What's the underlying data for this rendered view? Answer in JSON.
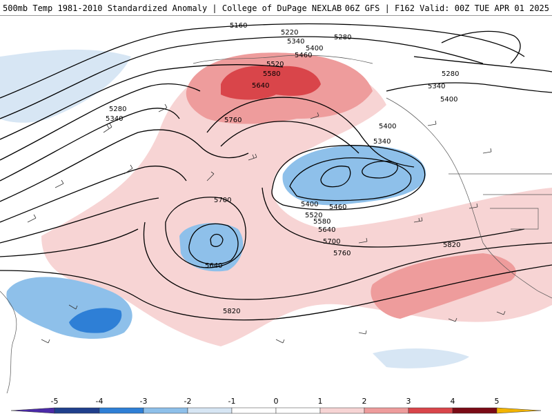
{
  "header": {
    "title_left": "500mb Temp 1981-2010 Standardized Anomaly | College of DuPage NEXLAB",
    "title_right": "06Z GFS | F162 Valid: 00Z TUE APR 01 2025"
  },
  "map": {
    "contour_labels": [
      "5160",
      "5220",
      "5280",
      "5340",
      "5400",
      "5460",
      "5520",
      "5580",
      "5640",
      "5760",
      "5280",
      "5340",
      "5400",
      "5340",
      "5400",
      "5460",
      "5520",
      "5580",
      "5640",
      "5700",
      "5760",
      "5820",
      "5700",
      "5640",
      "5820",
      "5280",
      "5340",
      "5400",
      "5280",
      "5400",
      "5340"
    ]
  },
  "legend": {
    "ticks": [
      "-5",
      "-4",
      "-3",
      "-2",
      "-1",
      "0",
      "1",
      "2",
      "3",
      "4",
      "5"
    ],
    "colors": {
      "m5": "#4b2aa8",
      "m4": "#1f3f8c",
      "m3": "#2e7fd6",
      "m2": "#8ec0ea",
      "m1": "#d7e6f4",
      "p0": "#ffffff",
      "p1": "#f7d4d4",
      "p2": "#ee9c9c",
      "p3": "#d9454a",
      "p4": "#b01423",
      "p5": "#7a0a15",
      "tip": "#f2b400"
    }
  }
}
